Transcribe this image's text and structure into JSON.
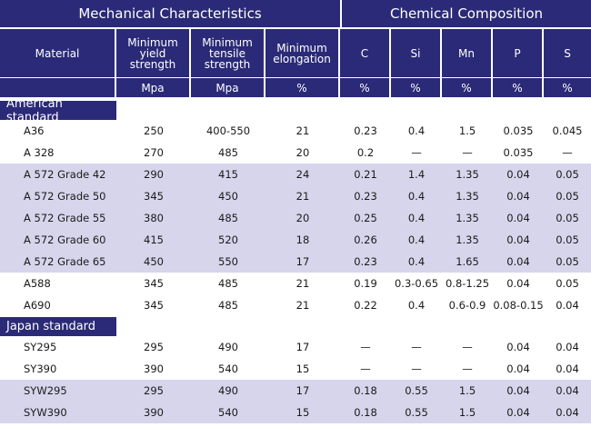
{
  "header": {
    "mechanical_title": "Mechanical Characteristics",
    "chemical_title": "Chemical Composition",
    "columns": [
      "Material",
      "Minimum\nyield\nstrength",
      "Minimum\ntensile\nstrength",
      "Minimum\nelongation",
      "C",
      "Si",
      "Mn",
      "P",
      "S"
    ],
    "units": [
      "",
      "Mpa",
      "Mpa",
      "%",
      "%",
      "%",
      "%",
      "%",
      "%"
    ]
  },
  "sections": [
    {
      "title": "American standard",
      "rows": [
        {
          "shaded": false,
          "cells": [
            "A36",
            "250",
            "400-550",
            "21",
            "0.23",
            "0.4",
            "1.5",
            "0.035",
            "0.045"
          ]
        },
        {
          "shaded": false,
          "cells": [
            "A 328",
            "270",
            "485",
            "20",
            "0.2",
            "—",
            "—",
            "0.035",
            "—"
          ]
        },
        {
          "shaded": true,
          "cells": [
            "A 572 Grade 42",
            "290",
            "415",
            "24",
            "0.21",
            "1.4",
            "1.35",
            "0.04",
            "0.05"
          ]
        },
        {
          "shaded": true,
          "cells": [
            "A 572 Grade 50",
            "345",
            "450",
            "21",
            "0.23",
            "0.4",
            "1.35",
            "0.04",
            "0.05"
          ]
        },
        {
          "shaded": true,
          "cells": [
            "A 572 Grade 55",
            "380",
            "485",
            "20",
            "0.25",
            "0.4",
            "1.35",
            "0.04",
            "0.05"
          ]
        },
        {
          "shaded": true,
          "cells": [
            "A 572 Grade 60",
            "415",
            "520",
            "18",
            "0.26",
            "0.4",
            "1.35",
            "0.04",
            "0.05"
          ]
        },
        {
          "shaded": true,
          "cells": [
            "A 572 Grade 65",
            "450",
            "550",
            "17",
            "0.23",
            "0.4",
            "1.65",
            "0.04",
            "0.05"
          ]
        },
        {
          "shaded": false,
          "cells": [
            "A588",
            "345",
            "485",
            "21",
            "0.19",
            "0.3-0.65",
            "0.8-1.25",
            "0.04",
            "0.05"
          ]
        },
        {
          "shaded": false,
          "cells": [
            "A690",
            "345",
            "485",
            "21",
            "0.22",
            "0.4",
            "0.6-0.9",
            "0.08-0.15",
            "0.04"
          ]
        }
      ]
    },
    {
      "title": "Japan standard",
      "rows": [
        {
          "shaded": false,
          "cells": [
            "SY295",
            "295",
            "490",
            "17",
            "—",
            "—",
            "—",
            "0.04",
            "0.04"
          ]
        },
        {
          "shaded": false,
          "cells": [
            "SY390",
            "390",
            "540",
            "15",
            "—",
            "—",
            "—",
            "0.04",
            "0.04"
          ]
        },
        {
          "shaded": true,
          "cells": [
            "SYW295",
            "295",
            "490",
            "17",
            "0.18",
            "0.55",
            "1.5",
            "0.04",
            "0.04"
          ]
        },
        {
          "shaded": true,
          "cells": [
            "SYW390",
            "390",
            "540",
            "15",
            "0.18",
            "0.55",
            "1.5",
            "0.04",
            "0.04"
          ]
        }
      ]
    }
  ]
}
